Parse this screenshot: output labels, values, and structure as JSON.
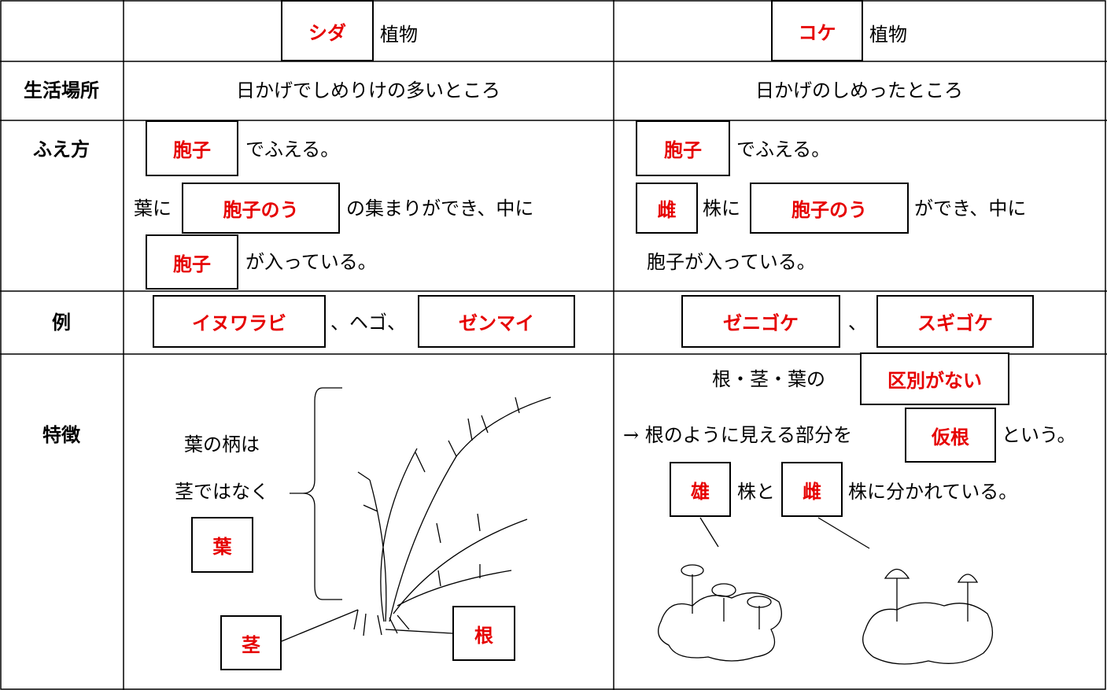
{
  "header": {
    "fern": {
      "answer": "シダ",
      "text": "植物"
    },
    "moss": {
      "answer": "コケ",
      "text": "植物"
    }
  },
  "habitat": {
    "label": "生活場所",
    "fern": "日かげでしめりけの多いところ",
    "moss": "日かげのしめったところ"
  },
  "reproduction": {
    "label": "ふえ方",
    "fern": {
      "line1": {
        "answer": "胞子",
        "text": "でふえる。"
      },
      "line2": {
        "prefix": "葉に",
        "answer": "胞子のう",
        "text": "の集まりができ、中に"
      },
      "line3": {
        "answer": "胞子",
        "text": "が入っている。"
      }
    },
    "moss": {
      "line1": {
        "answer": "胞子",
        "text": "でふえる。"
      },
      "line2": {
        "answer1": "雌",
        "text1": "株に",
        "answer2": "胞子のう",
        "text2": "ができ、中に"
      },
      "line3": "胞子が入っている。"
    }
  },
  "examples": {
    "label": "例",
    "fern": {
      "answer1": "イヌワラビ",
      "text": "、ヘゴ、",
      "answer2": "ゼンマイ"
    },
    "moss": {
      "answer1": "ゼニゴケ",
      "text": "、",
      "answer2": "スギゴケ"
    }
  },
  "features": {
    "label": "特徴",
    "fern": {
      "note1": "葉の柄は",
      "note2": "茎ではなく",
      "leaf": "葉",
      "stem": "茎",
      "root": "根"
    },
    "moss": {
      "line1": {
        "text": "根・茎・葉の",
        "answer": "区別がない"
      },
      "line2": {
        "text1": "→ 根のように見える部分を",
        "answer": "仮根",
        "text2": "という。"
      },
      "line3": {
        "answer1": "雄",
        "text1": "株と",
        "answer2": "雌",
        "text2": "株に分かれている。"
      }
    }
  }
}
